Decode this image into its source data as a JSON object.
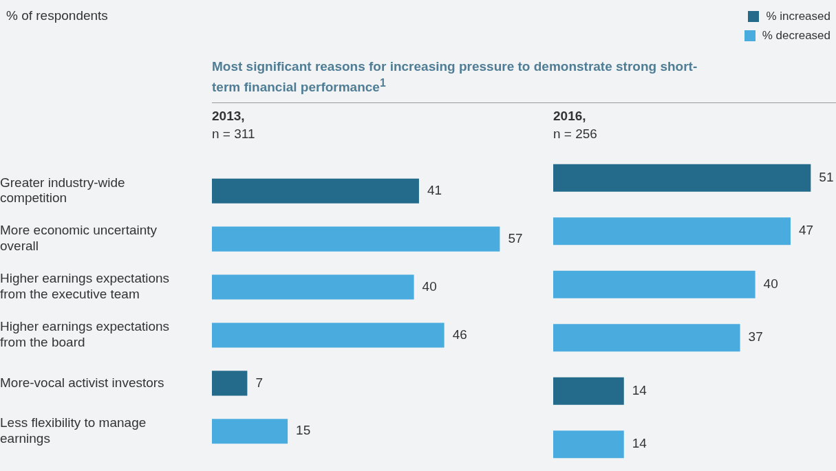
{
  "chart_data": [
    {
      "type": "bar",
      "orientation": "horizontal",
      "stacked": true,
      "title": "Most significant reasons for increasing pressure to demonstrate strong short-term financial performance$^{1}$",
      "subtitle": "2013,",
      "annotations": [
        "% of respondents",
        "n = 311"
      ],
      "categories": [
        "Greater industry-wide competition",
        "More economic uncertainty overall",
        "Higher earnings expectations from the executive team",
        "Higher earnings expectations from the board",
        "More-vocal activist investors",
        "Less flexibility to manage earnings"
      ],
      "series": [
        {
          "name": "% increased",
          "color": "#236a8b",
          "values": [
            41,
            null,
            null,
            null,
            7,
            null
          ]
        },
        {
          "name": "% decreased",
          "color": "#4aabdf",
          "values": [
            null,
            57,
            40,
            46,
            null,
            15
          ]
        }
      ],
      "data_labels": true,
      "legend": "top right",
      "tick_labels": "y"
    },
    {
      "type": "bar",
      "orientation": "horizontal",
      "stacked": true,
      "subtitle": "2016,",
      "annotations": [
        "n = 256"
      ],
      "categories": [
        null,
        null,
        null,
        null,
        null,
        null
      ],
      "series": [
        {
          "color": "#236a8b",
          "values": [
            51,
            null,
            null,
            null,
            14,
            null
          ]
        },
        {
          "color": "#4aabdf",
          "values": [
            null,
            47,
            40,
            37,
            null,
            14
          ]
        }
      ],
      "data_labels": true
    }
  ]
}
